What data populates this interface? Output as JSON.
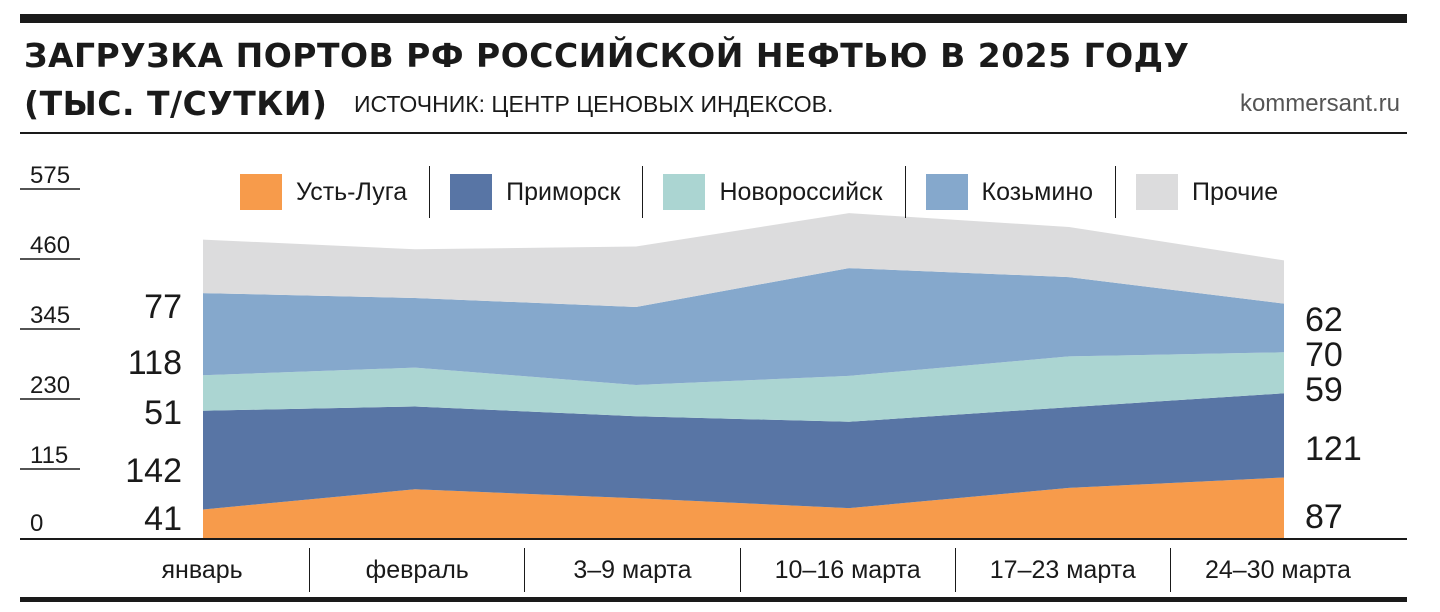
{
  "title_line1": "ЗАГРУЗКА ПОРТОВ РФ РОССИЙСКОЙ НЕФТЬЮ В 2025 ГОДУ",
  "title_line2": "(ТЫС. Т/СУТКИ)",
  "source": "ИСТОЧНИК: ЦЕНТР ЦЕНОВЫХ ИНДЕКСОВ.",
  "site": "kommersant.ru",
  "colors": {
    "ust_luga": "#f79b4b",
    "primorsk": "#5875a5",
    "novorossiysk": "#abd5d2",
    "kozmino": "#85a8cc",
    "other": "#dcdcdd"
  },
  "chart_data": {
    "type": "area",
    "stacked": true,
    "categories": [
      "январь",
      "февраль",
      "3–9 марта",
      "10–16 марта",
      "17–23 марта",
      "24–30 марта"
    ],
    "yticks": [
      "575",
      "460",
      "345",
      "230",
      "115",
      "0"
    ],
    "ylim": [
      0,
      575
    ],
    "series": [
      {
        "name": "Усть-Луга",
        "values": [
          41,
          70,
          57,
          43,
          72,
          87
        ]
      },
      {
        "name": "Приморск",
        "values": [
          142,
          119,
          118,
          124,
          116,
          121
        ]
      },
      {
        "name": "Новороссийск",
        "values": [
          51,
          56,
          45,
          66,
          73,
          59
        ]
      },
      {
        "name": "Козьмино",
        "values": [
          118,
          100,
          112,
          155,
          114,
          70
        ]
      },
      {
        "name": "Прочие",
        "values": [
          77,
          70,
          87,
          79,
          72,
          62
        ]
      }
    ],
    "left_labels": [
      "77",
      "118",
      "51",
      "142",
      "41"
    ],
    "right_labels": [
      "62",
      "70",
      "59",
      "121",
      "87"
    ],
    "legend_position": "top"
  }
}
